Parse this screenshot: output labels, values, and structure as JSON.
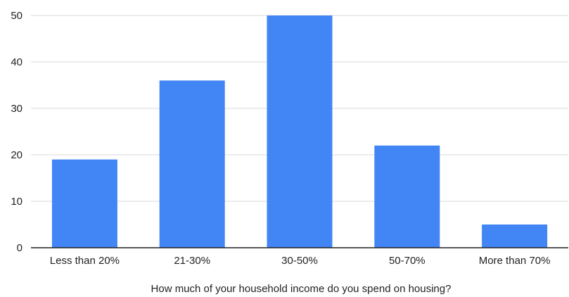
{
  "chart_data": {
    "type": "bar",
    "categories": [
      "Less than 20%",
      "21-30%",
      "30-50%",
      "50-70%",
      "More than 70%"
    ],
    "values": [
      19,
      36,
      50,
      22,
      5
    ],
    "xlabel": "How much of your household income do you spend on housing?",
    "ylabel": "",
    "ylim": [
      0,
      50
    ],
    "yticks": [
      0,
      10,
      20,
      30,
      40,
      50
    ],
    "grid": true,
    "legend": "none",
    "bar_color": "#4285F4",
    "grid_color": "#d9d9d9",
    "axis_color": "#222222"
  }
}
